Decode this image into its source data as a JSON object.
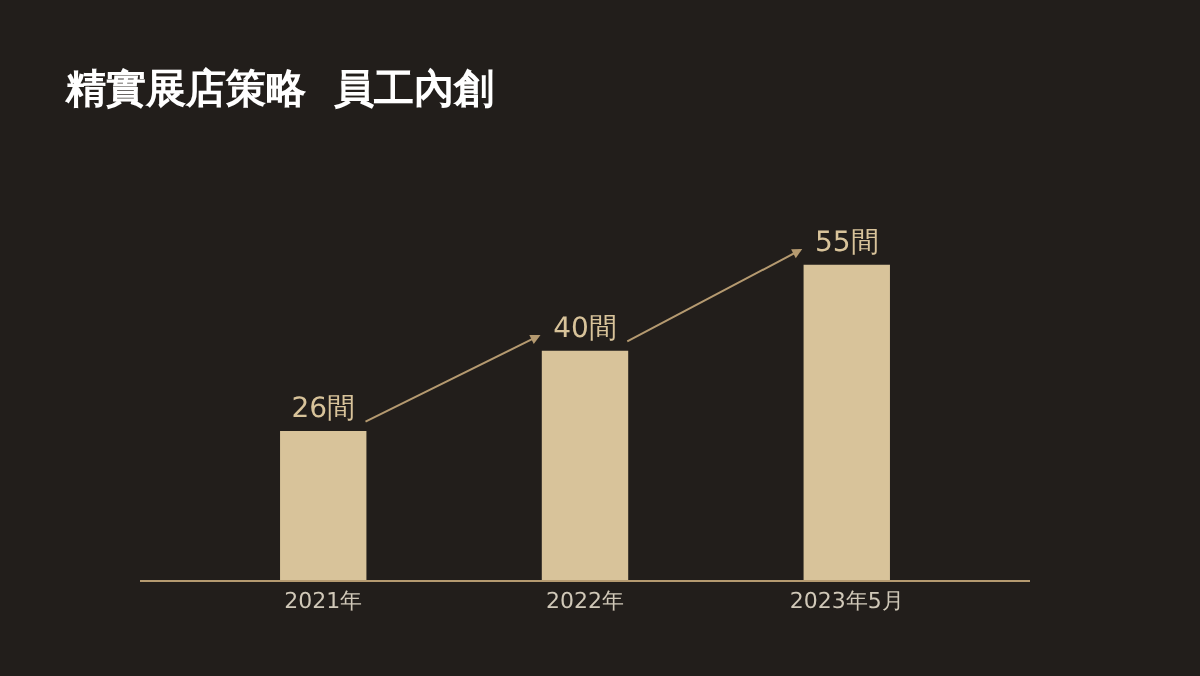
{
  "chart_data": {
    "type": "bar",
    "title": "精實展店策略  員工內創",
    "categories": [
      "2021年",
      "2022年",
      "2023年5月"
    ],
    "values": [
      26,
      40,
      55
    ],
    "value_labels": [
      "26間",
      "40間",
      "55間"
    ],
    "color": "#d8c39a",
    "grid": false,
    "legend": false
  }
}
